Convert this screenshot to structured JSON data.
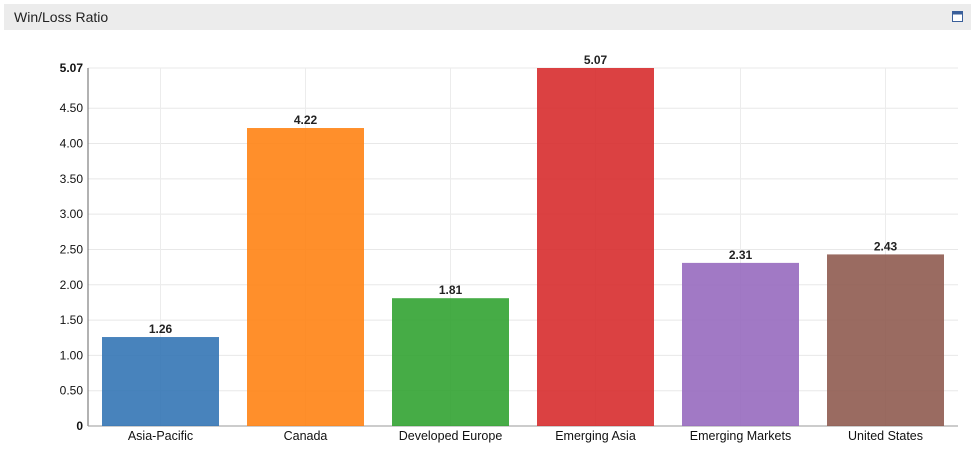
{
  "panel": {
    "title": "Win/Loss Ratio",
    "maximize_icon": "maximize-window-icon"
  },
  "chart_data": {
    "type": "bar",
    "title": "",
    "xlabel": "",
    "ylabel": "",
    "categories": [
      "Asia-Pacific",
      "Canada",
      "Developed Europe",
      "Emerging Asia",
      "Emerging Markets",
      "United States"
    ],
    "values": [
      1.26,
      4.22,
      1.81,
      5.07,
      2.31,
      2.43
    ],
    "value_labels": [
      "1.26",
      "4.22",
      "1.81",
      "5.07",
      "2.31",
      "2.43"
    ],
    "colors": [
      "#2f72b3",
      "#ff7f0e",
      "#2ca02c",
      "#d62728",
      "#9467bd",
      "#8c564b"
    ],
    "ylim": [
      0,
      5.07
    ],
    "y_ticks": [
      "0",
      "0.50",
      "1.00",
      "1.50",
      "2.00",
      "2.50",
      "3.00",
      "3.50",
      "4.00",
      "4.50",
      "5.07"
    ],
    "grid": true,
    "legend": "none"
  }
}
